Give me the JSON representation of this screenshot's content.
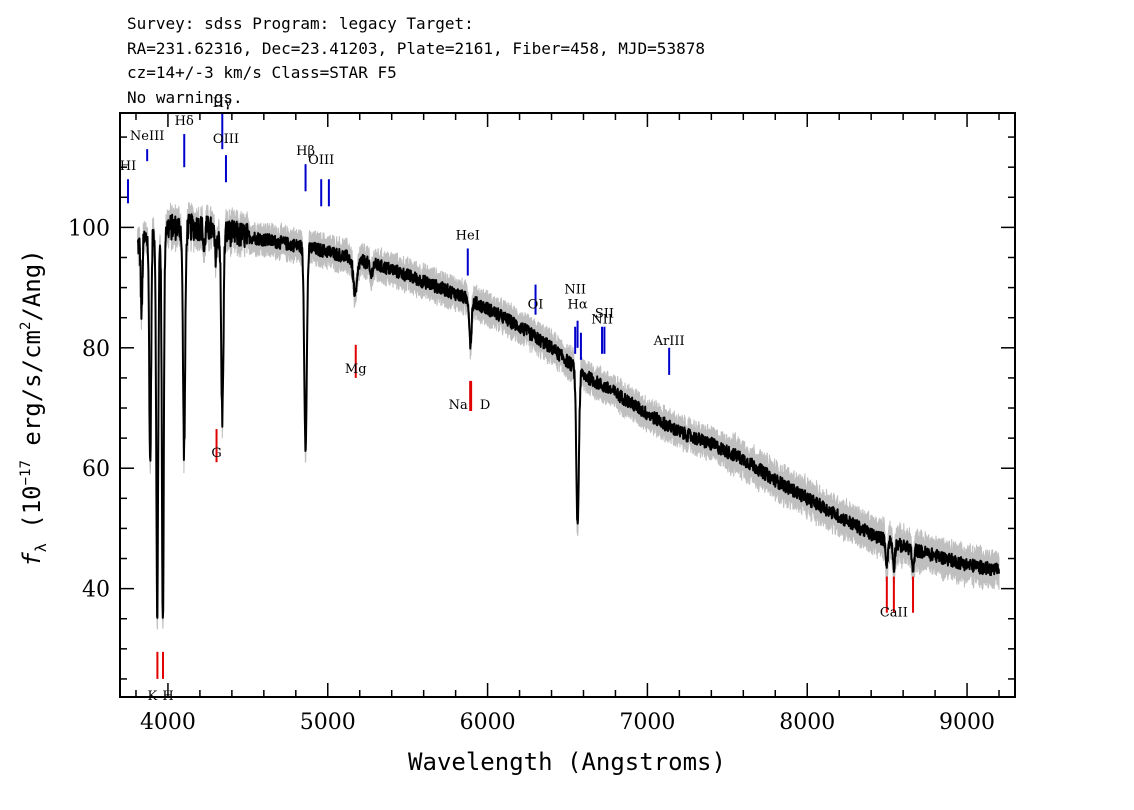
{
  "header": {
    "line1": "Survey: sdss Program: legacy Target:",
    "line2": "RA=231.62316, Dec=23.41203, Plate=2161, Fiber=458, MJD=53878",
    "line3": "cz=14+/-3 km/s Class=STAR F5",
    "line4": "No warnings."
  },
  "chart_data": {
    "type": "line",
    "xlabel": "Wavelength (Angstroms)",
    "ylabel": "f_λ (10^-17 erg/s/cm^2/Ang)",
    "xlim": [
      3700,
      9300
    ],
    "ylim": [
      22,
      119
    ],
    "x_ticks": [
      4000,
      5000,
      6000,
      7000,
      8000,
      9000
    ],
    "y_ticks": [
      40,
      60,
      80,
      100
    ],
    "grid": false,
    "colors": {
      "flux": "#000000",
      "error": "#bfbfbf",
      "emission": "#0000cc",
      "absorption": "#e00000"
    },
    "continuum": [
      [
        3810,
        97
      ],
      [
        3900,
        99
      ],
      [
        4000,
        100
      ],
      [
        4100,
        100
      ],
      [
        4200,
        100
      ],
      [
        4300,
        99.5
      ],
      [
        4400,
        99
      ],
      [
        4500,
        98.5
      ],
      [
        4600,
        98
      ],
      [
        4700,
        97.5
      ],
      [
        4800,
        97
      ],
      [
        4900,
        96.5
      ],
      [
        5000,
        96
      ],
      [
        5200,
        94.5
      ],
      [
        5400,
        93
      ],
      [
        5600,
        91
      ],
      [
        5800,
        89
      ],
      [
        6000,
        86.5
      ],
      [
        6200,
        83.5
      ],
      [
        6400,
        80
      ],
      [
        6600,
        75.5
      ],
      [
        6800,
        72.5
      ],
      [
        7000,
        69
      ],
      [
        7200,
        66
      ],
      [
        7400,
        64
      ],
      [
        7600,
        61.5
      ],
      [
        7800,
        58
      ],
      [
        8000,
        55
      ],
      [
        8200,
        52
      ],
      [
        8400,
        49
      ],
      [
        8600,
        47
      ],
      [
        8800,
        45.5
      ],
      [
        9000,
        44
      ],
      [
        9200,
        43
      ]
    ],
    "absorption_features": [
      {
        "x": 3835,
        "depth": 12,
        "width": 5
      },
      {
        "x": 3889,
        "depth": 38,
        "width": 6
      },
      {
        "x": 3933,
        "depth": 64,
        "width": 6
      },
      {
        "x": 3968,
        "depth": 65,
        "width": 6
      },
      {
        "x": 4101,
        "depth": 37,
        "width": 7
      },
      {
        "x": 4226,
        "depth": 4,
        "width": 5
      },
      {
        "x": 4300,
        "depth": 4,
        "width": 8
      },
      {
        "x": 4340,
        "depth": 31,
        "width": 7
      },
      {
        "x": 4861,
        "depth": 33,
        "width": 8
      },
      {
        "x": 5172,
        "depth": 6,
        "width": 12
      },
      {
        "x": 5270,
        "depth": 2,
        "width": 8
      },
      {
        "x": 5890,
        "depth": 4,
        "width": 6
      },
      {
        "x": 5896,
        "depth": 4,
        "width": 6
      },
      {
        "x": 6563,
        "depth": 26,
        "width": 8
      },
      {
        "x": 8498,
        "depth": 4,
        "width": 6
      },
      {
        "x": 8542,
        "depth": 4,
        "width": 6
      },
      {
        "x": 8662,
        "depth": 4,
        "width": 6
      }
    ],
    "emission_lines": [
      {
        "label": "HI",
        "x": 3750,
        "label_y": 109.5,
        "y0": 104,
        "y1": 108
      },
      {
        "label": "NeIII",
        "x": 3870,
        "label_y": 114.5,
        "y0": 111,
        "y1": 113
      },
      {
        "label": "Hδ",
        "x": 4102,
        "label_y": 117,
        "y0": 110,
        "y1": 115.5
      },
      {
        "label": "Hγ",
        "x": 4340,
        "label_y": 120,
        "y0": 113,
        "y1": 119
      },
      {
        "label": "OIII",
        "x": 4363,
        "label_y": 114,
        "y0": 107.5,
        "y1": 112
      },
      {
        "label": "Hβ",
        "x": 4861,
        "label_y": 112,
        "y0": 106,
        "y1": 110.5
      },
      {
        "label": "OIII",
        "x": 4959,
        "label_y": 110.5,
        "y0": 103.5,
        "y1": 108
      },
      {
        "label": "",
        "x": 5007,
        "label_y": 110.5,
        "y0": 103.5,
        "y1": 108
      },
      {
        "label": "HeI",
        "x": 5876,
        "label_y": 98,
        "y0": 92,
        "y1": 96.5
      },
      {
        "label": "OI",
        "x": 6300,
        "label_y": 86.5,
        "y0": 85.5,
        "y1": 90.5
      },
      {
        "label": "NII",
        "x": 6548,
        "label_y": 89,
        "y0": 79,
        "y1": 83.5
      },
      {
        "label": "Hα",
        "x": 6563,
        "label_y": 86.5,
        "y0": 80,
        "y1": 84.5
      },
      {
        "label": "",
        "x": 6584,
        "label_y": 86.5,
        "y0": 78,
        "y1": 82.5
      },
      {
        "label": "NII",
        "x": 6716,
        "label_y": 84,
        "y0": 79,
        "y1": 83.5
      },
      {
        "label": "SII",
        "x": 6731,
        "label_y": 85,
        "y0": 79,
        "y1": 83.5
      },
      {
        "label": "ArIII",
        "x": 7136,
        "label_y": 80.5,
        "y0": 75.5,
        "y1": 80
      }
    ],
    "absorption_lines": [
      {
        "label": "K",
        "x": 3934,
        "label_y": 22.2,
        "y0": 25,
        "y1": 29.5
      },
      {
        "label": "H",
        "x": 3969,
        "label_y": 22.2,
        "y0": 25,
        "y1": 29.5
      },
      {
        "label": "G",
        "x": 4304,
        "label_y": 62.5,
        "y0": 61,
        "y1": 66.5
      },
      {
        "label": "Mg",
        "x": 5175,
        "label_y": 76.5,
        "y0": 75,
        "y1": 80.5
      },
      {
        "label": "Na",
        "x": 5891,
        "label_y": 70.5,
        "y0": 69.5,
        "y1": 74.5
      },
      {
        "label": "D",
        "x": 5897,
        "label_y": 70.5,
        "y0": 69.5,
        "y1": 74.5
      },
      {
        "label": "CaII",
        "x": 8542,
        "label_y": 36,
        "y0": 36,
        "y1": 42
      }
    ],
    "absorption_line_extra": [
      {
        "x": 8498
      },
      {
        "x": 8662
      }
    ]
  }
}
